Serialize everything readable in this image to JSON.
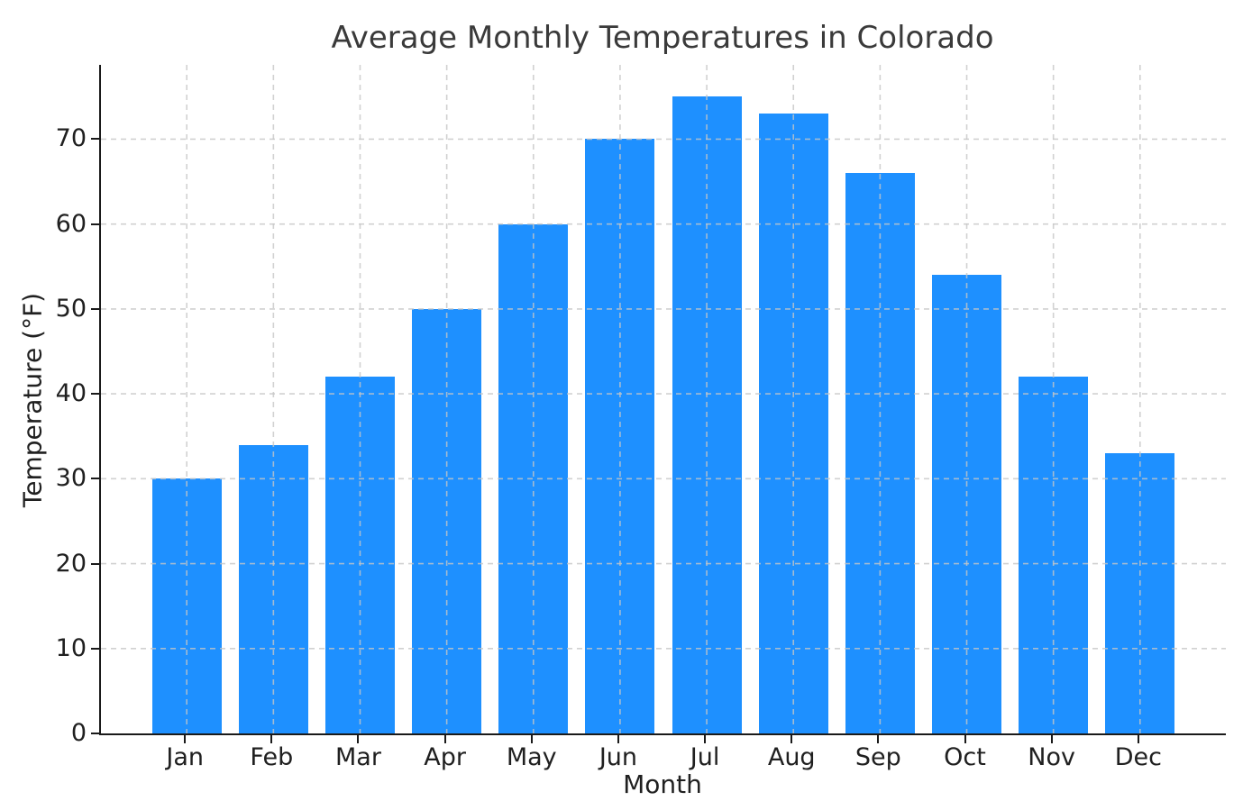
{
  "figure": {
    "background": "#ffffff"
  },
  "chart_data": {
    "type": "bar",
    "title": "Average Monthly Temperatures in Colorado",
    "xlabel": "Month",
    "ylabel": "Temperature (°F)",
    "categories": [
      "Jan",
      "Feb",
      "Mar",
      "Apr",
      "May",
      "Jun",
      "Jul",
      "Aug",
      "Sep",
      "Oct",
      "Nov",
      "Dec"
    ],
    "values": [
      30,
      34,
      42,
      50,
      60,
      70,
      75,
      73,
      66,
      54,
      42,
      33
    ],
    "yticks": [
      0,
      10,
      20,
      30,
      40,
      50,
      60,
      70
    ],
    "ylim": [
      0,
      78.75
    ],
    "bar_width_fraction": 0.8,
    "bar_color": "#1E90FF",
    "axis_color": "#1a1a1a",
    "text_color": "#202020",
    "title_color": "#3a3a3a",
    "grid": true,
    "grid_style": "dashed",
    "grid_color": "#c5c5c5",
    "grid_above_bars": true,
    "legend": "none"
  }
}
